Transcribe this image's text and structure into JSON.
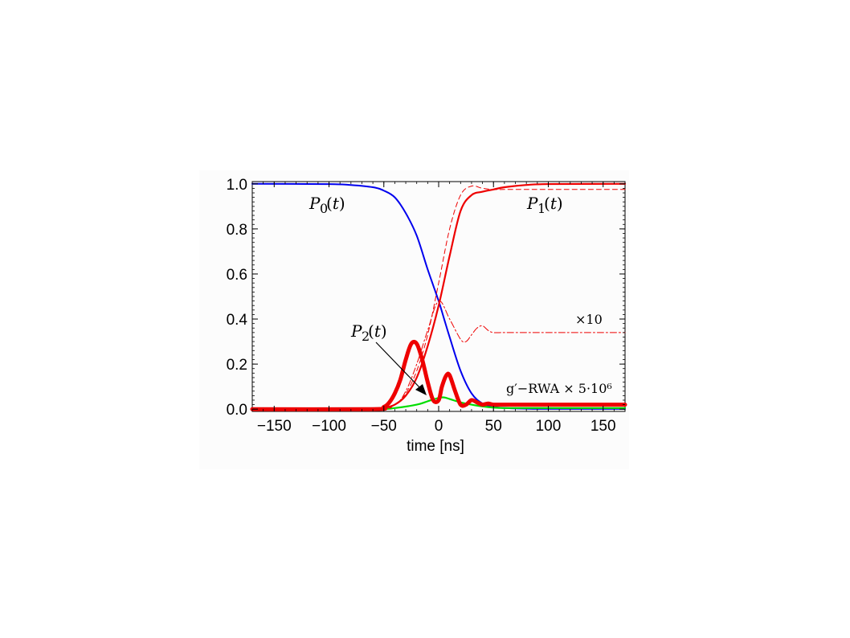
{
  "chart_data": {
    "type": "line",
    "title": "",
    "xlabel": "time [ns]",
    "ylabel": "",
    "xlim": [
      -170,
      170
    ],
    "ylim": [
      -0.01,
      1.01
    ],
    "x_ticks": [
      -150,
      -100,
      -50,
      0,
      50,
      100,
      150
    ],
    "x_tick_labels": [
      "−150",
      "−100",
      "−50",
      "0",
      "50",
      "100",
      "150"
    ],
    "y_ticks": [
      0.0,
      0.2,
      0.4,
      0.6,
      0.8,
      1.0
    ],
    "y_tick_labels": [
      "0.0",
      "0.2",
      "0.4",
      "0.6",
      "0.8",
      "1.0"
    ],
    "grid": false,
    "colors": {
      "p0": "#0000ee",
      "p1": "#ee0000",
      "p2": "#ee0000",
      "rwa": "#00dd00"
    },
    "series": [
      {
        "name": "P0(t)",
        "style": "solid",
        "x": [
          -170,
          -100,
          -80,
          -60,
          -50,
          -40,
          -30,
          -20,
          -10,
          0,
          5,
          10,
          20,
          30,
          40,
          50,
          60,
          80,
          100,
          170
        ],
        "y": [
          1.0,
          0.999,
          0.995,
          0.985,
          0.97,
          0.94,
          0.87,
          0.77,
          0.62,
          0.48,
          0.4,
          0.32,
          0.17,
          0.07,
          0.025,
          0.01,
          0.005,
          0.002,
          0.001,
          0.001
        ]
      },
      {
        "name": "P1(t)",
        "style": "solid",
        "x": [
          -170,
          -60,
          -50,
          -40,
          -30,
          -20,
          -10,
          0,
          10,
          20,
          30,
          40,
          50,
          60,
          80,
          100,
          170
        ],
        "y": [
          0.0,
          0.0,
          0.005,
          0.02,
          0.06,
          0.14,
          0.28,
          0.46,
          0.68,
          0.88,
          0.95,
          0.965,
          0.975,
          0.985,
          0.995,
          0.999,
          1.0
        ]
      },
      {
        "name": "P1(t) dashed",
        "style": "dashed",
        "x": [
          -170,
          -60,
          -40,
          -30,
          -20,
          -10,
          0,
          10,
          20,
          30,
          40,
          50,
          60,
          80,
          100,
          170
        ],
        "y": [
          0.0,
          0.0,
          0.02,
          0.07,
          0.17,
          0.33,
          0.56,
          0.8,
          0.95,
          0.99,
          0.98,
          0.975,
          0.975,
          0.975,
          0.975,
          0.975
        ]
      },
      {
        "name": "×10",
        "style": "dashdot",
        "x": [
          -170,
          -60,
          -40,
          -30,
          -20,
          -10,
          0,
          10,
          20,
          25,
          30,
          35,
          40,
          45,
          50,
          60,
          80,
          100,
          170
        ],
        "y": [
          0.0,
          0.0,
          0.02,
          0.08,
          0.2,
          0.35,
          0.48,
          0.4,
          0.31,
          0.3,
          0.33,
          0.36,
          0.37,
          0.35,
          0.34,
          0.34,
          0.34,
          0.34,
          0.34
        ]
      },
      {
        "name": "P2(t)",
        "style": "thick",
        "x": [
          -170,
          -60,
          -50,
          -45,
          -40,
          -35,
          -30,
          -25,
          -20,
          -15,
          -10,
          -5,
          0,
          3,
          7,
          10,
          15,
          20,
          25,
          30,
          35,
          40,
          45,
          50,
          60,
          80,
          170
        ],
        "y": [
          0.0,
          0.0,
          0.01,
          0.03,
          0.07,
          0.13,
          0.22,
          0.29,
          0.29,
          0.22,
          0.12,
          0.04,
          0.04,
          0.1,
          0.15,
          0.15,
          0.08,
          0.02,
          0.02,
          0.04,
          0.03,
          0.02,
          0.025,
          0.02,
          0.02,
          0.02,
          0.02
        ]
      },
      {
        "name": "g′−RWA × 5·10⁶",
        "style": "solid",
        "x": [
          -170,
          -60,
          -40,
          -20,
          -10,
          0,
          5,
          10,
          20,
          30,
          40,
          50,
          60,
          80,
          170
        ],
        "y": [
          0.0,
          0.0,
          0.005,
          0.02,
          0.035,
          0.05,
          0.052,
          0.045,
          0.03,
          0.02,
          0.012,
          0.007,
          0.005,
          0.005,
          0.005
        ]
      }
    ],
    "annotations": {
      "p0": "P0(t)",
      "p1": "P1(t)",
      "p2": "P2(t)",
      "times10": "×10",
      "rwa": "g′−RWA × 5·10⁶"
    }
  }
}
